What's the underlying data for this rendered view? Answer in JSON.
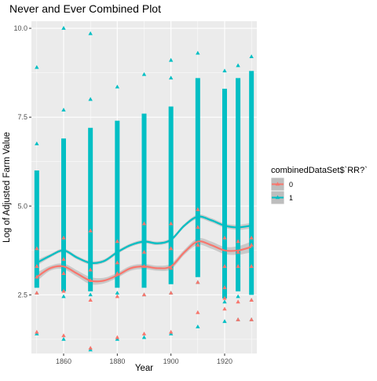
{
  "chart_data": {
    "type": "scatter",
    "title": "Never and Ever Combined Plot",
    "xlabel": "Year",
    "ylabel": "Log of Adjusted Farm Value",
    "xlim": [
      1848,
      1932
    ],
    "ylim": [
      0.85,
      10.2
    ],
    "x_ticks": [
      1860,
      1880,
      1900,
      1920
    ],
    "y_ticks": [
      2.5,
      5.0,
      7.5,
      10.0
    ],
    "x_tick_labels": [
      "1860",
      "1880",
      "1900",
      "1920"
    ],
    "y_tick_labels": [
      "2.5",
      "5.0",
      "7.5",
      "10.0"
    ],
    "grid": true,
    "legend": {
      "title": "combinedDataSet$`RR?`",
      "placement": "right",
      "entries": [
        "0",
        "1"
      ]
    },
    "colors": {
      "series_0": "#F8766D",
      "series_1": "#00BFC4",
      "panel_bg": "#EBEBEB",
      "grid": "#FFFFFF",
      "ribbon": "#BDBDBD"
    },
    "series": [
      {
        "name": "0",
        "color": "#F8766D",
        "points": [
          {
            "x": 1850,
            "y": [
              1.45,
              2.55,
              3.0,
              3.3,
              3.8
            ]
          },
          {
            "x": 1860,
            "y": [
              1.35,
              2.6,
              3.1,
              3.5,
              4.1
            ]
          },
          {
            "x": 1870,
            "y": [
              1.0,
              2.35,
              2.9,
              3.2,
              4.3
            ]
          },
          {
            "x": 1880,
            "y": [
              1.3,
              2.45,
              3.1,
              3.4,
              4.0
            ]
          },
          {
            "x": 1890,
            "y": [
              1.4,
              2.5,
              3.3,
              3.7,
              4.5
            ]
          },
          {
            "x": 1900,
            "y": [
              1.45,
              2.55,
              3.25,
              3.8,
              4.5
            ]
          },
          {
            "x": 1910,
            "y": [
              2.0,
              2.85,
              3.9,
              4.4,
              4.9
            ]
          },
          {
            "x": 1920,
            "y": [
              2.1,
              2.4,
              2.7,
              3.3,
              4.1
            ]
          },
          {
            "x": 1925,
            "y": [
              1.8,
              2.3,
              3.3,
              3.7,
              4.0
            ]
          },
          {
            "x": 1930,
            "y": [
              1.8,
              2.35,
              3.3,
              3.9,
              4.1
            ]
          }
        ],
        "smooth": {
          "x": [
            1850,
            1855,
            1860,
            1865,
            1870,
            1875,
            1880,
            1885,
            1890,
            1895,
            1900,
            1905,
            1910,
            1915,
            1920,
            1925,
            1930
          ],
          "y": [
            3.0,
            3.25,
            3.3,
            3.1,
            2.9,
            2.9,
            3.05,
            3.25,
            3.3,
            3.25,
            3.3,
            3.7,
            4.0,
            3.9,
            3.75,
            3.75,
            3.85
          ],
          "ribbon_halfwidth": [
            0.12,
            0.07,
            0.08,
            0.09,
            0.1,
            0.08,
            0.07,
            0.07,
            0.07,
            0.07,
            0.08,
            0.07,
            0.09,
            0.1,
            0.1,
            0.12,
            0.15
          ]
        }
      },
      {
        "name": "1",
        "color": "#00BFC4",
        "points": [
          {
            "x": 1850,
            "y": [
              1.4,
              2.55,
              6.75,
              8.9
            ],
            "band": [
              2.7,
              6.0
            ]
          },
          {
            "x": 1860,
            "y": [
              1.25,
              2.45,
              7.7,
              10.0
            ],
            "band": [
              2.6,
              6.9
            ]
          },
          {
            "x": 1870,
            "y": [
              0.95,
              2.5,
              8.0,
              9.85
            ],
            "band": [
              2.6,
              7.2
            ]
          },
          {
            "x": 1880,
            "y": [
              1.25,
              2.55,
              8.35
            ],
            "band": [
              2.7,
              7.4
            ]
          },
          {
            "x": 1890,
            "y": [
              1.3,
              2.5,
              8.7
            ],
            "band": [
              2.7,
              7.6
            ]
          },
          {
            "x": 1900,
            "y": [
              1.4,
              2.55,
              8.6,
              9.1
            ],
            "band": [
              2.8,
              7.8
            ]
          },
          {
            "x": 1910,
            "y": [
              1.6,
              2.85,
              9.3
            ],
            "band": [
              3.0,
              8.6
            ]
          },
          {
            "x": 1920,
            "y": [
              1.75,
              2.3,
              8.8
            ],
            "band": [
              2.4,
              8.3
            ]
          },
          {
            "x": 1925,
            "y": [
              1.8,
              2.45,
              8.95
            ],
            "band": [
              2.6,
              8.6
            ]
          },
          {
            "x": 1930,
            "y": [
              1.8,
              2.35,
              9.2
            ],
            "band": [
              2.5,
              8.8
            ]
          }
        ],
        "smooth": {
          "x": [
            1850,
            1855,
            1860,
            1865,
            1870,
            1875,
            1880,
            1885,
            1890,
            1895,
            1900,
            1905,
            1910,
            1915,
            1920,
            1925,
            1930
          ],
          "y": [
            3.4,
            3.6,
            3.75,
            3.55,
            3.4,
            3.45,
            3.7,
            3.9,
            4.0,
            3.95,
            4.05,
            4.45,
            4.7,
            4.6,
            4.45,
            4.4,
            4.45
          ],
          "ribbon_halfwidth": [
            0.08,
            0.05,
            0.05,
            0.05,
            0.05,
            0.05,
            0.05,
            0.05,
            0.05,
            0.05,
            0.05,
            0.05,
            0.06,
            0.06,
            0.06,
            0.07,
            0.08
          ]
        }
      }
    ]
  }
}
